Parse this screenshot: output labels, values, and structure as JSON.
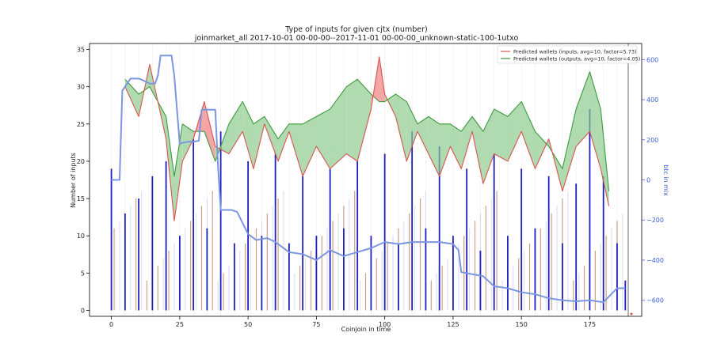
{
  "chart_data": {
    "type": "bar",
    "title": "Type of inputs for given cjtx (number)",
    "subtitle": "joinmarket_all 2017-10-01 00-00-00--2017-11-01 00-00-00_unknown-static-100-1utxo",
    "xlabel": "Coinjoin in time",
    "ylabel": "Number of inputs",
    "y2label": "btc in mix",
    "xlim": [
      -8,
      194
    ],
    "ylim": [
      -0.8,
      35.8
    ],
    "y2lim": [
      -680,
      680
    ],
    "grid": "vertical",
    "legend_position": "top-right",
    "xticks": [
      0,
      25,
      50,
      75,
      100,
      125,
      150,
      175
    ],
    "yticks": [
      0,
      5,
      10,
      15,
      20,
      25,
      30,
      35
    ],
    "y2ticks": [
      -600,
      -400,
      -200,
      0,
      200,
      400,
      600
    ],
    "y2tick_labels": [
      "−600",
      "−400",
      "−200",
      "0",
      "200",
      "400",
      "600"
    ],
    "colors": {
      "inputs": "#d9534f",
      "inputs_fill": "#f08080",
      "outputs": "#3c9a3c",
      "outputs_fill": "#8fcb8f",
      "bars": "#1f1fbf",
      "btc_line": "#7b96e0",
      "btc_axis": "#3a5fcd",
      "bar_accents": [
        "#f5b041",
        "#a0522d",
        "#f1948a",
        "#c9c3f0"
      ]
    },
    "series": [
      {
        "name": "Predicted wallets (inputs, avg=10, factor=5.73)",
        "kind": "line",
        "x": [
          5,
          10,
          14,
          20,
          23,
          26,
          30,
          34,
          38,
          43,
          48,
          52,
          56,
          61,
          65,
          70,
          75,
          80,
          86,
          90,
          95,
          98,
          100,
          104,
          108,
          112,
          116,
          120,
          124,
          128,
          132,
          136,
          140,
          145,
          150,
          155,
          160,
          165,
          170,
          175,
          179,
          182
        ],
        "values": [
          30,
          26,
          33,
          23,
          12,
          20,
          23,
          28,
          22,
          21,
          24,
          19,
          25,
          20,
          24,
          18,
          22,
          19,
          21,
          20,
          27,
          34,
          29,
          26,
          20,
          24,
          21,
          18,
          22,
          19,
          24,
          17,
          21,
          20,
          24,
          19,
          23,
          16,
          22,
          24,
          19,
          14
        ]
      },
      {
        "name": "Predicted wallets (outputs, avg=10, factor=4.05)",
        "kind": "line",
        "x": [
          5,
          10,
          14,
          20,
          23,
          26,
          30,
          34,
          38,
          43,
          48,
          52,
          56,
          61,
          65,
          70,
          75,
          80,
          86,
          90,
          95,
          98,
          100,
          104,
          108,
          112,
          116,
          120,
          124,
          128,
          132,
          136,
          140,
          145,
          150,
          155,
          160,
          165,
          170,
          175,
          179,
          182
        ],
        "values": [
          31,
          29,
          30,
          26,
          18,
          25,
          24,
          24,
          20,
          25,
          28,
          25,
          26,
          23,
          25,
          25,
          26,
          27,
          30,
          31,
          29,
          28,
          28,
          29,
          28,
          25,
          26,
          25,
          25,
          24,
          26,
          24,
          27,
          26,
          28,
          24,
          22,
          19,
          27,
          32,
          27,
          16
        ]
      },
      {
        "name": "btc in mix",
        "kind": "line",
        "axis": "right",
        "x": [
          0,
          3,
          4,
          7,
          10,
          11,
          14,
          16,
          17,
          18,
          20,
          22,
          23,
          25,
          26,
          28,
          30,
          32,
          33,
          35,
          38,
          39,
          40,
          44,
          46,
          50,
          53,
          57,
          60,
          65,
          70,
          75,
          80,
          85,
          90,
          95,
          100,
          105,
          110,
          115,
          120,
          125,
          127,
          128,
          132,
          136,
          140,
          145,
          150,
          155,
          160,
          165,
          170,
          175,
          180,
          185,
          188
        ],
        "values": [
          0,
          0,
          445,
          505,
          505,
          500,
          480,
          480,
          520,
          620,
          620,
          620,
          520,
          180,
          185,
          190,
          190,
          195,
          350,
          350,
          350,
          70,
          -150,
          -150,
          -160,
          -270,
          -300,
          -290,
          -310,
          -360,
          -370,
          -400,
          -350,
          -380,
          -360,
          -340,
          -310,
          -320,
          -310,
          -310,
          -310,
          -320,
          -350,
          -460,
          -470,
          -480,
          -530,
          -540,
          -560,
          -570,
          -590,
          -600,
          -605,
          -600,
          -610,
          -540,
          -540
        ]
      },
      {
        "name": "inputs",
        "kind": "bar",
        "x": [
          0,
          5,
          10,
          15,
          20,
          25,
          30,
          35,
          40,
          45,
          50,
          55,
          60,
          65,
          70,
          75,
          80,
          85,
          90,
          95,
          100,
          105,
          110,
          115,
          120,
          125,
          130,
          135,
          140,
          145,
          150,
          155,
          160,
          165,
          170,
          175,
          180,
          185,
          188
        ],
        "values": [
          19,
          13,
          15,
          18,
          20,
          10,
          23,
          11,
          24,
          9,
          20,
          10,
          21,
          9,
          18,
          10,
          19,
          11,
          20,
          10,
          21,
          9,
          24,
          11,
          22,
          10,
          19,
          8,
          21,
          10,
          19,
          11,
          18,
          9,
          17,
          27,
          18,
          9,
          4
        ]
      }
    ]
  }
}
